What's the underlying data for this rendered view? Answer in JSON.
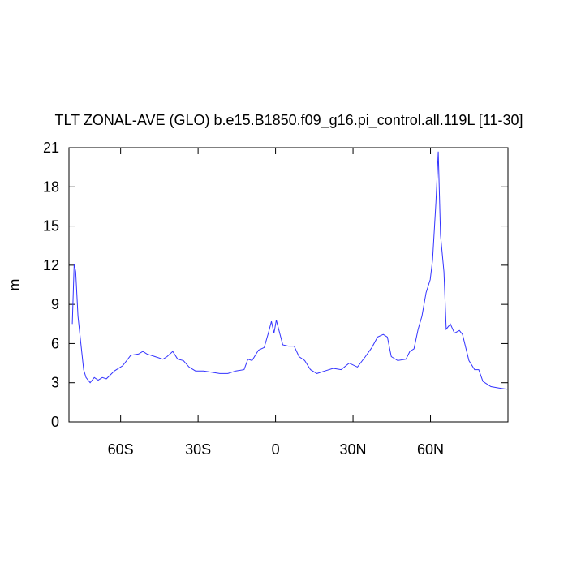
{
  "chart_data": {
    "type": "line",
    "title": "TLT ZONAL-AVE (GLO) b.e15.B1850.f09_g16.pi_control.all.119L [11-30]",
    "y_label": "m",
    "series": [
      {
        "color": "#3333ff",
        "x": [
          -78.7,
          -78,
          -77.4,
          -76.5,
          -75.5,
          -74.3,
          -73.4,
          -71.8,
          -70.2,
          -68.7,
          -67.1,
          -65.5,
          -62.4,
          -59.2,
          -56.1,
          -53,
          -51.4,
          -49.8,
          -46.7,
          -43.6,
          -42,
          -39.8,
          -37.9,
          -35.7,
          -33.5,
          -31,
          -27.9,
          -24.8,
          -21.6,
          -18.5,
          -15.4,
          -12.2,
          -10.7,
          -9.1,
          -6.6,
          -4.4,
          -2.8,
          -1.6,
          -0.6,
          0.3,
          1.6,
          2.8,
          5,
          7.2,
          9.1,
          11.3,
          13.5,
          16,
          19.1,
          22.3,
          25.4,
          28.5,
          31.7,
          34.8,
          37.3,
          39.5,
          41.7,
          43.3,
          44.8,
          47.3,
          50.5,
          52,
          53.6,
          55.2,
          56.7,
          58.3,
          59.9,
          60.8,
          62.1,
          63,
          63.9,
          65.2,
          66.1,
          67.7,
          69.3,
          71.2,
          72.4,
          74.9,
          77.1,
          78.7,
          80.3,
          83.4,
          86.5,
          89.7
        ],
        "values": [
          7.5,
          12.1,
          11.5,
          8.1,
          6.2,
          4.0,
          3.4,
          3.0,
          3.4,
          3.2,
          3.4,
          3.3,
          3.9,
          4.3,
          5.1,
          5.2,
          5.4,
          5.2,
          5.0,
          4.8,
          5.0,
          5.4,
          4.8,
          4.7,
          4.2,
          3.9,
          3.9,
          3.8,
          3.7,
          3.7,
          3.9,
          4.0,
          4.8,
          4.7,
          5.5,
          5.7,
          6.8,
          7.7,
          6.8,
          7.8,
          6.8,
          5.9,
          5.8,
          5.8,
          5.0,
          4.7,
          4.0,
          3.7,
          3.9,
          4.1,
          4.0,
          4.5,
          4.2,
          5.0,
          5.7,
          6.5,
          6.7,
          6.5,
          5.0,
          4.7,
          4.8,
          5.4,
          5.6,
          7.1,
          8.1,
          9.9,
          10.9,
          12.4,
          16.8,
          20.7,
          14.3,
          11.5,
          7.1,
          7.5,
          6.8,
          7.0,
          6.7,
          4.7,
          4.0,
          4.0,
          3.1,
          2.7,
          2.6,
          2.5
        ]
      }
    ],
    "xlim": [
      -80,
      90
    ],
    "xticks": [
      {
        "value": -60,
        "label": "60S"
      },
      {
        "value": -30,
        "label": "30S"
      },
      0,
      {
        "value": 30,
        "label": "30N"
      },
      {
        "value": 60,
        "label": "60N"
      }
    ],
    "ylim": [
      0,
      21
    ],
    "yticks": [
      0,
      3,
      6,
      9,
      12,
      15,
      18,
      21
    ]
  }
}
